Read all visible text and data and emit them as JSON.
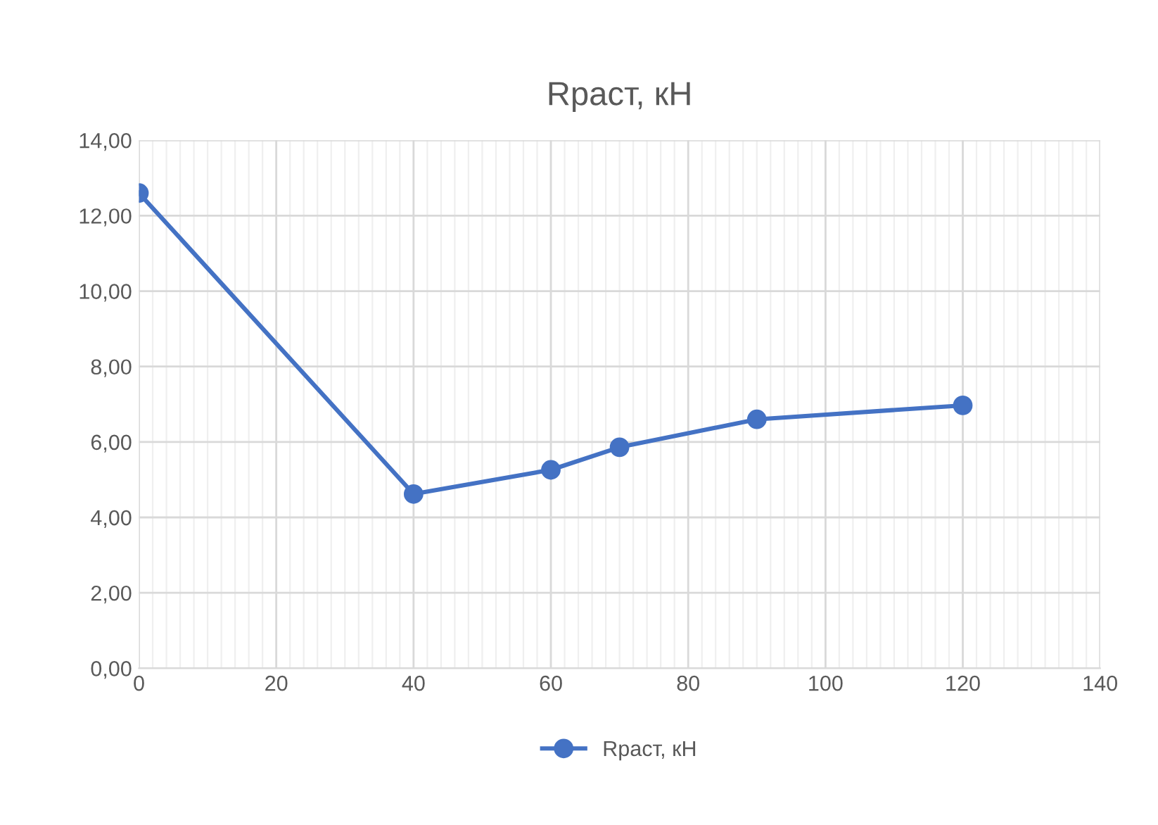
{
  "chart_data": {
    "type": "line",
    "title": "Rраст, кН",
    "x": [
      0,
      40,
      60,
      70,
      90,
      120
    ],
    "series": [
      {
        "name": "Rраст, кН",
        "color": "#4472c4",
        "values": [
          12.6,
          4.62,
          5.26,
          5.86,
          6.6,
          6.97
        ]
      }
    ],
    "xlim": [
      0,
      140
    ],
    "xticks": [
      0,
      20,
      40,
      60,
      80,
      100,
      120,
      140
    ],
    "ylim": [
      0,
      14
    ],
    "yticks": [
      {
        "value": 0,
        "label": "0,00"
      },
      {
        "value": 2,
        "label": "2,00"
      },
      {
        "value": 4,
        "label": "4,00"
      },
      {
        "value": 6,
        "label": "6,00"
      },
      {
        "value": 8,
        "label": "8,00"
      },
      {
        "value": 10,
        "label": "10,00"
      },
      {
        "value": 12,
        "label": "12,00"
      },
      {
        "value": 14,
        "label": "14,00"
      }
    ],
    "grid": true,
    "legend": "bottom",
    "marker": "circle",
    "line_style": "solid"
  }
}
